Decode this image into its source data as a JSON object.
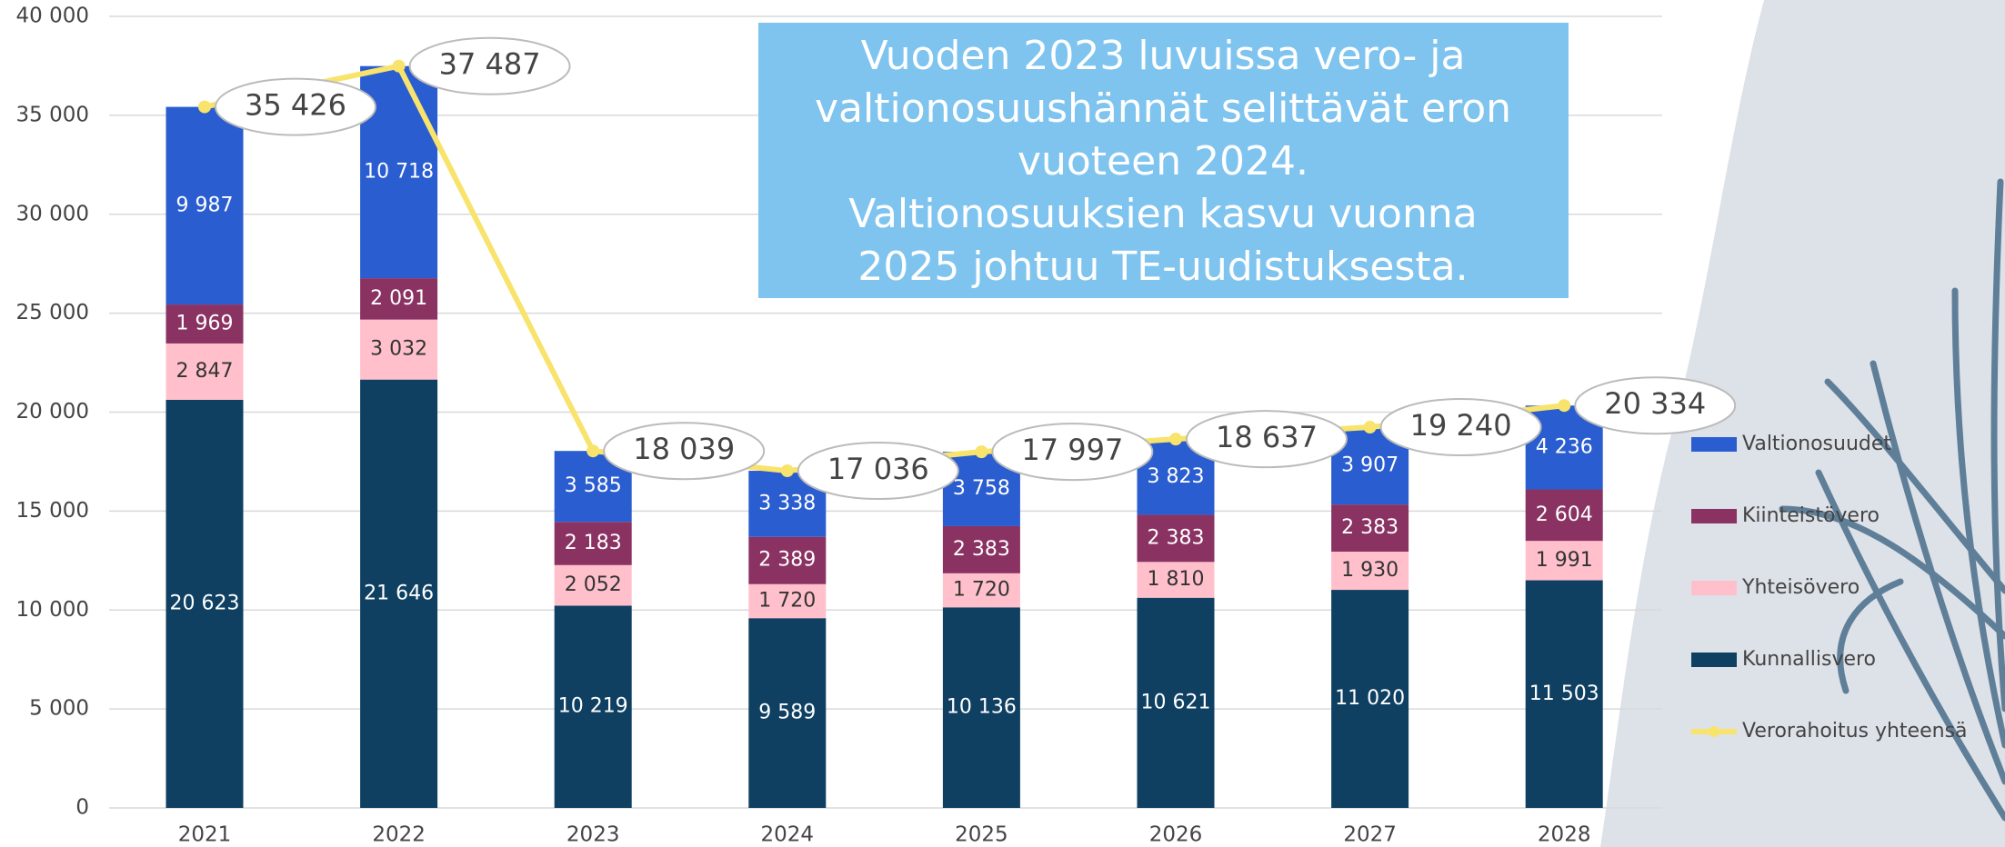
{
  "chart_data": {
    "type": "bar",
    "stacked": true,
    "categories": [
      "2021",
      "2022",
      "2023",
      "2024",
      "2025",
      "2026",
      "2027",
      "2028"
    ],
    "series": [
      {
        "name": "Kunnallisvero",
        "color": "#0f4062",
        "label_color": "#ffffff",
        "values": [
          20623,
          21646,
          10219,
          9589,
          10136,
          10621,
          11020,
          11503
        ],
        "value_labels": [
          "20 623",
          "21 646",
          "10 219",
          "9 589",
          "10 136",
          "10 621",
          "11 020",
          "11 503"
        ]
      },
      {
        "name": "Yhteisövero",
        "color": "#ffc0cc",
        "label_color": "#333333",
        "values": [
          2847,
          3032,
          2052,
          1720,
          1720,
          1810,
          1930,
          1991
        ],
        "value_labels": [
          "2 847",
          "3 032",
          "2 052",
          "1 720",
          "1 720",
          "1 810",
          "1 930",
          "1 991"
        ]
      },
      {
        "name": "Kiinteistövero",
        "color": "#8a3262",
        "label_color": "#ffffff",
        "values": [
          1969,
          2091,
          2183,
          2389,
          2383,
          2383,
          2383,
          2604
        ],
        "value_labels": [
          "1 969",
          "2 091",
          "2 183",
          "2 389",
          "2 383",
          "2 383",
          "2 383",
          "2 604"
        ]
      },
      {
        "name": "Valtionosuudet",
        "color": "#2a5dd0",
        "label_color": "#ffffff",
        "values": [
          9987,
          10718,
          3585,
          3338,
          3758,
          3823,
          3907,
          4236
        ],
        "value_labels": [
          "9 987",
          "10 718",
          "3 585",
          "3 338",
          "3 758",
          "3 823",
          "3 907",
          "4 236"
        ]
      },
      {
        "name": "Verorahoitus yhteensä",
        "type": "line",
        "color": "#f8e36c",
        "label_color": "#444444",
        "values": [
          35426,
          37487,
          18039,
          17036,
          17997,
          18637,
          19240,
          20334
        ],
        "value_labels": [
          "35 426",
          "37 487",
          "18 039",
          "17 036",
          "17 997",
          "18 637",
          "19 240",
          "20 334"
        ]
      }
    ],
    "ylim": [
      0,
      40000
    ],
    "yticks": [
      {
        "value": 0,
        "label": "0"
      },
      {
        "value": 5000,
        "label": "5 000"
      },
      {
        "value": 10000,
        "label": "10 000"
      },
      {
        "value": 15000,
        "label": "15 000"
      },
      {
        "value": 20000,
        "label": "20 000"
      },
      {
        "value": 25000,
        "label": "25 000"
      },
      {
        "value": 30000,
        "label": "30 000"
      },
      {
        "value": 35000,
        "label": "35 000"
      },
      {
        "value": 40000,
        "label": "40 000"
      }
    ],
    "grid": true,
    "legend": "right",
    "annotation": [
      "Vuoden 2023 luvuissa vero- ja",
      "valtionosuushännät selittävät eron",
      "vuoteen 2024.",
      "Valtionosuuksien kasvu vuonna",
      "2025 johtuu TE-uudistuksesta."
    ]
  }
}
